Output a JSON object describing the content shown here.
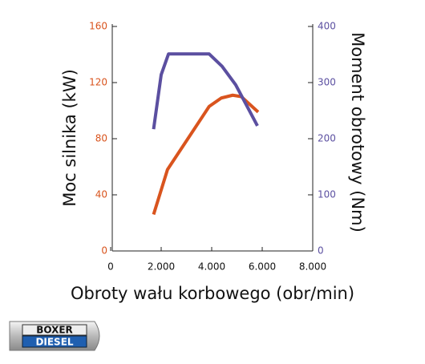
{
  "chart_data": {
    "type": "line",
    "x_label": "Obroty wału korbowego (obr/min)",
    "y_label": "Moc silnika (kW)",
    "y2_label": "Moment obrotowy (Nm)",
    "xlim": [
      0,
      8000
    ],
    "xticks": [
      0,
      {
        "value": 2000,
        "label": "2.000"
      },
      {
        "value": 4000,
        "label": "4.000"
      },
      {
        "value": 6000,
        "label": "6.000"
      },
      {
        "value": 8000,
        "label": "8.000"
      }
    ],
    "ylim": [
      0,
      160
    ],
    "yticks": [
      0,
      40,
      80,
      120,
      160
    ],
    "ytick_color": "#d9541e",
    "y2lim": [
      0,
      400
    ],
    "y2ticks": [
      0,
      100,
      200,
      300,
      400
    ],
    "y2tick_color": "#5b4fa0",
    "series": [
      {
        "color": "#d9541e",
        "axis": "y",
        "x": [
          1700,
          2250,
          3900,
          4380,
          4830,
          5170,
          5840
        ],
        "values": [
          26,
          58,
          103,
          109,
          111,
          110,
          99
        ]
      },
      {
        "color": "#5b4fa0",
        "axis": "y2",
        "x": [
          1700,
          2000,
          2290,
          3900,
          4410,
          4950,
          5810
        ],
        "values": [
          217,
          314,
          351,
          351,
          329,
          296,
          223
        ]
      }
    ]
  },
  "logo": {
    "top": "BOXER",
    "bottom": "DIESEL"
  }
}
